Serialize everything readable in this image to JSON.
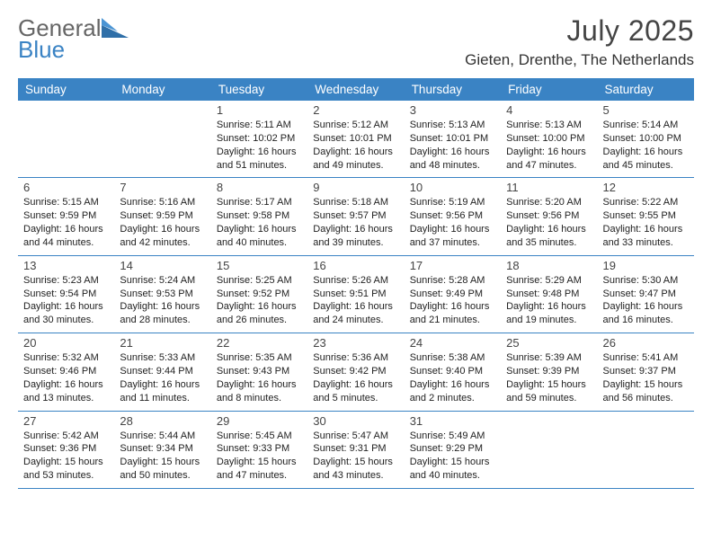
{
  "logo": {
    "text1": "General",
    "text2": "Blue"
  },
  "title": "July 2025",
  "location": "Gieten, Drenthe, The Netherlands",
  "colors": {
    "accent": "#3a83c4",
    "text": "#333333"
  },
  "dow": [
    "Sunday",
    "Monday",
    "Tuesday",
    "Wednesday",
    "Thursday",
    "Friday",
    "Saturday"
  ],
  "weeks": [
    [
      null,
      null,
      {
        "n": "1",
        "sr": "5:11 AM",
        "ss": "10:02 PM",
        "dl": "16 hours and 51 minutes."
      },
      {
        "n": "2",
        "sr": "5:12 AM",
        "ss": "10:01 PM",
        "dl": "16 hours and 49 minutes."
      },
      {
        "n": "3",
        "sr": "5:13 AM",
        "ss": "10:01 PM",
        "dl": "16 hours and 48 minutes."
      },
      {
        "n": "4",
        "sr": "5:13 AM",
        "ss": "10:00 PM",
        "dl": "16 hours and 47 minutes."
      },
      {
        "n": "5",
        "sr": "5:14 AM",
        "ss": "10:00 PM",
        "dl": "16 hours and 45 minutes."
      }
    ],
    [
      {
        "n": "6",
        "sr": "5:15 AM",
        "ss": "9:59 PM",
        "dl": "16 hours and 44 minutes."
      },
      {
        "n": "7",
        "sr": "5:16 AM",
        "ss": "9:59 PM",
        "dl": "16 hours and 42 minutes."
      },
      {
        "n": "8",
        "sr": "5:17 AM",
        "ss": "9:58 PM",
        "dl": "16 hours and 40 minutes."
      },
      {
        "n": "9",
        "sr": "5:18 AM",
        "ss": "9:57 PM",
        "dl": "16 hours and 39 minutes."
      },
      {
        "n": "10",
        "sr": "5:19 AM",
        "ss": "9:56 PM",
        "dl": "16 hours and 37 minutes."
      },
      {
        "n": "11",
        "sr": "5:20 AM",
        "ss": "9:56 PM",
        "dl": "16 hours and 35 minutes."
      },
      {
        "n": "12",
        "sr": "5:22 AM",
        "ss": "9:55 PM",
        "dl": "16 hours and 33 minutes."
      }
    ],
    [
      {
        "n": "13",
        "sr": "5:23 AM",
        "ss": "9:54 PM",
        "dl": "16 hours and 30 minutes."
      },
      {
        "n": "14",
        "sr": "5:24 AM",
        "ss": "9:53 PM",
        "dl": "16 hours and 28 minutes."
      },
      {
        "n": "15",
        "sr": "5:25 AM",
        "ss": "9:52 PM",
        "dl": "16 hours and 26 minutes."
      },
      {
        "n": "16",
        "sr": "5:26 AM",
        "ss": "9:51 PM",
        "dl": "16 hours and 24 minutes."
      },
      {
        "n": "17",
        "sr": "5:28 AM",
        "ss": "9:49 PM",
        "dl": "16 hours and 21 minutes."
      },
      {
        "n": "18",
        "sr": "5:29 AM",
        "ss": "9:48 PM",
        "dl": "16 hours and 19 minutes."
      },
      {
        "n": "19",
        "sr": "5:30 AM",
        "ss": "9:47 PM",
        "dl": "16 hours and 16 minutes."
      }
    ],
    [
      {
        "n": "20",
        "sr": "5:32 AM",
        "ss": "9:46 PM",
        "dl": "16 hours and 13 minutes."
      },
      {
        "n": "21",
        "sr": "5:33 AM",
        "ss": "9:44 PM",
        "dl": "16 hours and 11 minutes."
      },
      {
        "n": "22",
        "sr": "5:35 AM",
        "ss": "9:43 PM",
        "dl": "16 hours and 8 minutes."
      },
      {
        "n": "23",
        "sr": "5:36 AM",
        "ss": "9:42 PM",
        "dl": "16 hours and 5 minutes."
      },
      {
        "n": "24",
        "sr": "5:38 AM",
        "ss": "9:40 PM",
        "dl": "16 hours and 2 minutes."
      },
      {
        "n": "25",
        "sr": "5:39 AM",
        "ss": "9:39 PM",
        "dl": "15 hours and 59 minutes."
      },
      {
        "n": "26",
        "sr": "5:41 AM",
        "ss": "9:37 PM",
        "dl": "15 hours and 56 minutes."
      }
    ],
    [
      {
        "n": "27",
        "sr": "5:42 AM",
        "ss": "9:36 PM",
        "dl": "15 hours and 53 minutes."
      },
      {
        "n": "28",
        "sr": "5:44 AM",
        "ss": "9:34 PM",
        "dl": "15 hours and 50 minutes."
      },
      {
        "n": "29",
        "sr": "5:45 AM",
        "ss": "9:33 PM",
        "dl": "15 hours and 47 minutes."
      },
      {
        "n": "30",
        "sr": "5:47 AM",
        "ss": "9:31 PM",
        "dl": "15 hours and 43 minutes."
      },
      {
        "n": "31",
        "sr": "5:49 AM",
        "ss": "9:29 PM",
        "dl": "15 hours and 40 minutes."
      },
      null,
      null
    ]
  ],
  "labels": {
    "sunrise": "Sunrise: ",
    "sunset": "Sunset: ",
    "daylight": "Daylight: "
  }
}
